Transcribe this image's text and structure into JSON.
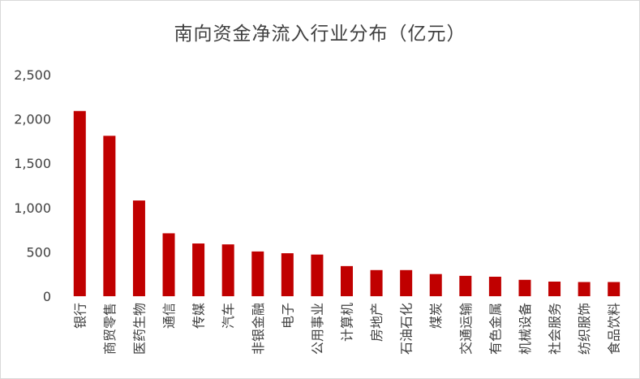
{
  "chart_data": {
    "type": "bar",
    "title": "南向资金净流入行业分布（亿元）",
    "xlabel": "",
    "ylabel": "",
    "ylim": [
      0,
      2500
    ],
    "yticks": [
      "0",
      "500",
      "1,000",
      "1,500",
      "2,000",
      "2,500"
    ],
    "grid": false,
    "legend": "none",
    "bar_color": "#c00000",
    "categories": [
      "银行",
      "商贸零售",
      "医药生物",
      "通信",
      "传媒",
      "汽车",
      "非银金融",
      "电子",
      "公用事业",
      "计算机",
      "房地产",
      "石油石化",
      "煤炭",
      "交通运输",
      "有色金属",
      "机械设备",
      "社会服务",
      "纺织服饰",
      "食品饮料"
    ],
    "values": [
      2090,
      1810,
      1080,
      710,
      595,
      585,
      505,
      485,
      470,
      340,
      295,
      295,
      250,
      230,
      220,
      185,
      165,
      160,
      160
    ]
  }
}
